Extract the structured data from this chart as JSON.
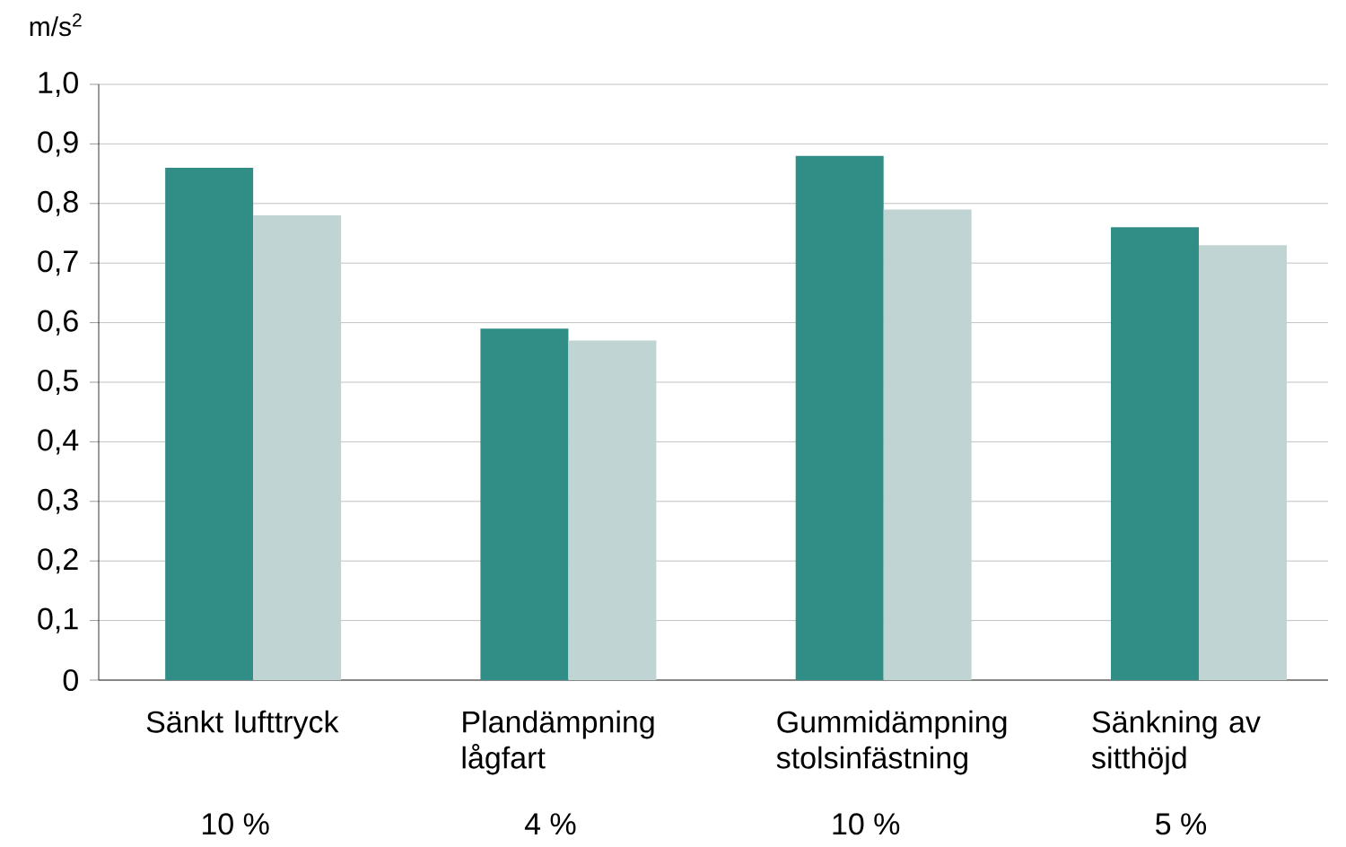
{
  "chart_data": {
    "type": "bar",
    "ylabel": "m/s$^{2}$",
    "categories": [
      "Sänkt lufttryck",
      "Plandämpning lågfart",
      "Gummidämpning stolsinfästning",
      "Sänkning av sitthöjd"
    ],
    "series": [
      {
        "color": "#318e87",
        "values": [
          0.86,
          0.59,
          0.88,
          0.76
        ]
      },
      {
        "color": "#c0d5d3",
        "values": [
          0.78,
          0.57,
          0.79,
          0.73
        ]
      }
    ],
    "ylim": [
      0,
      1
    ],
    "yticks": [
      0,
      {
        "value": 0.1,
        "label": "0,1"
      },
      {
        "value": 0.2,
        "label": "0,2"
      },
      {
        "value": 0.3,
        "label": "0,3"
      },
      {
        "value": 0.4,
        "label": "0,4"
      },
      {
        "value": 0.5,
        "label": "0,5"
      },
      {
        "value": 0.6,
        "label": "0,6"
      },
      {
        "value": 0.7,
        "label": "0,7"
      },
      {
        "value": 0.8,
        "label": "0,8"
      },
      {
        "value": 0.9,
        "label": "0,9"
      },
      {
        "value": 1.0,
        "label": "1,0"
      }
    ],
    "grid": "y",
    "annotations": [
      "10 %",
      "4 %",
      "10 %",
      "5 %"
    ]
  }
}
